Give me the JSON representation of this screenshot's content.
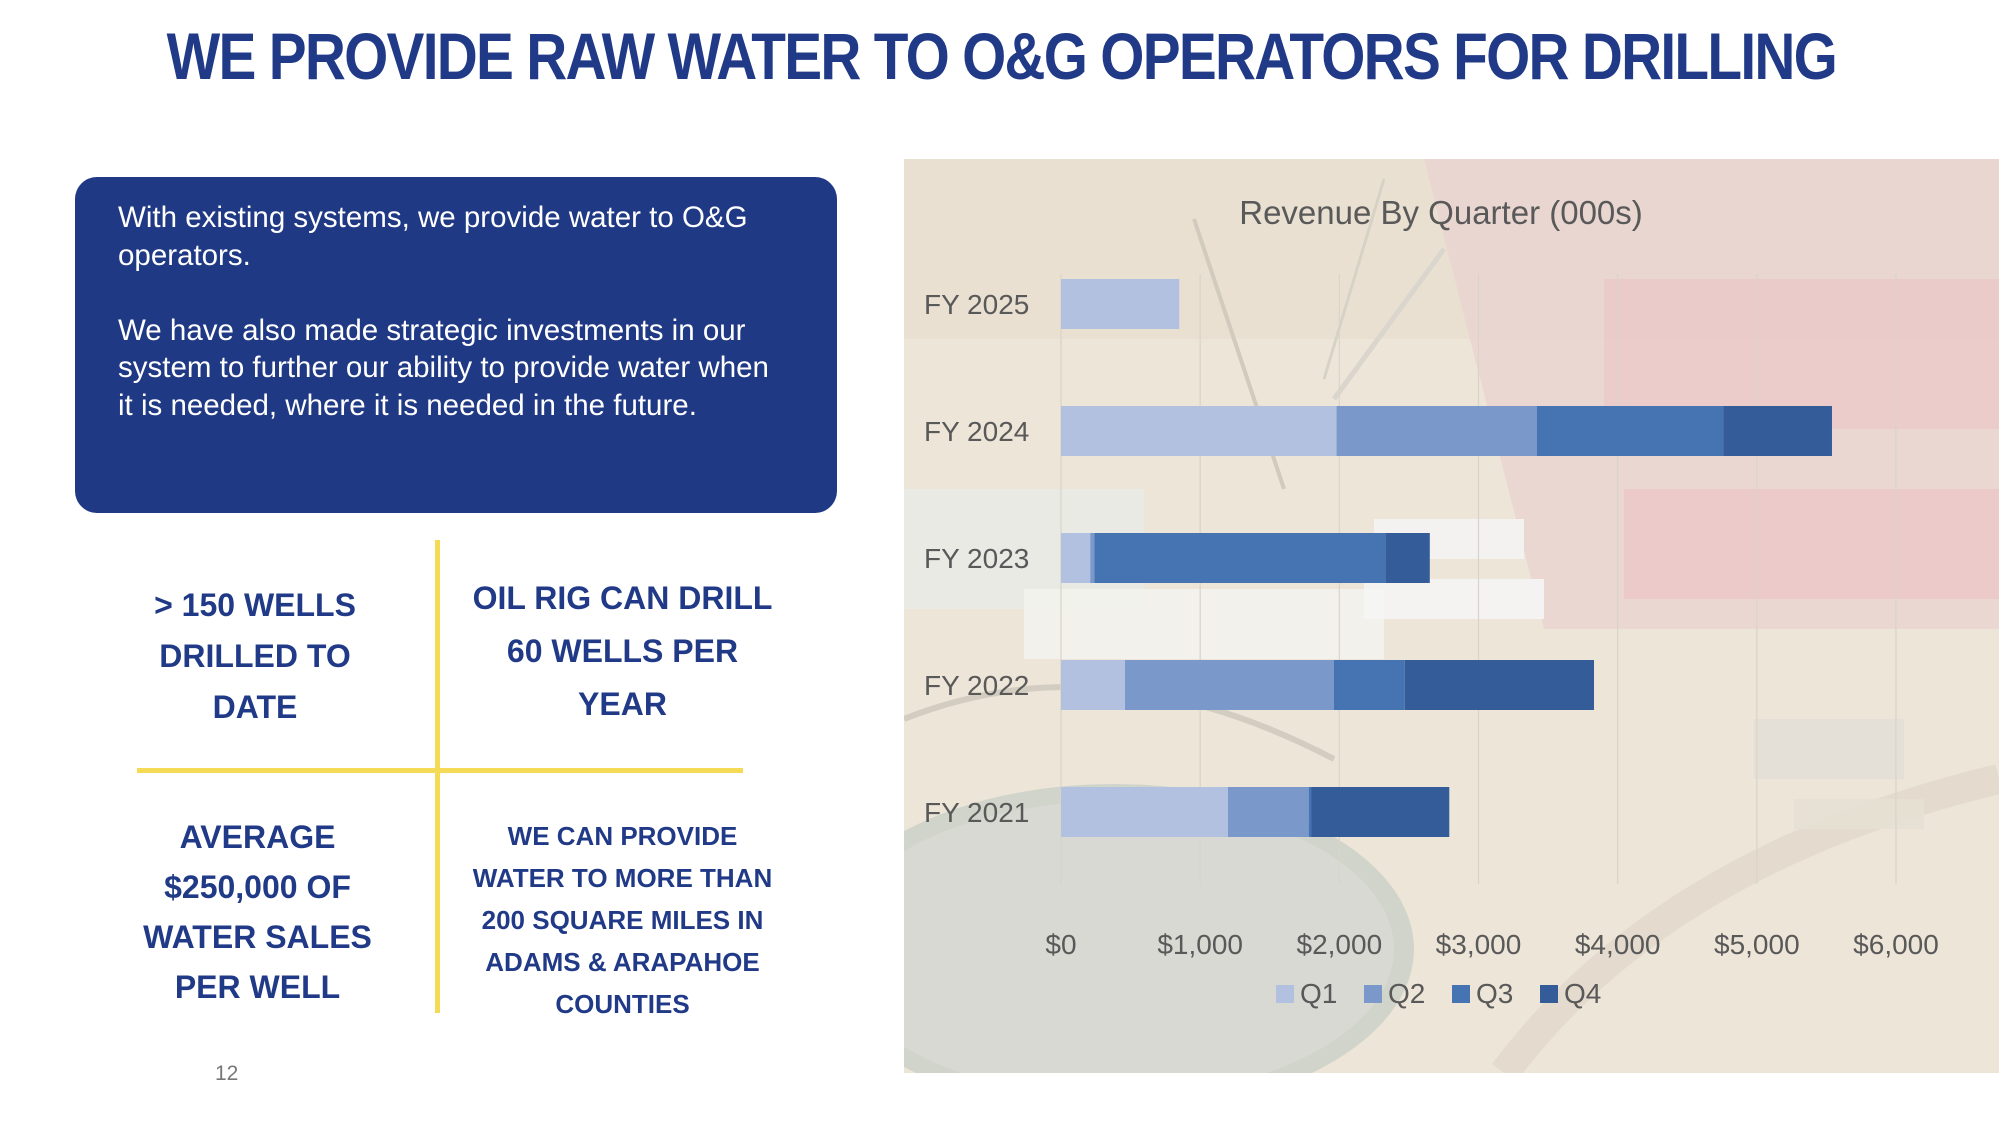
{
  "slide": {
    "title": "WE PROVIDE RAW WATER TO O&G OPERATORS FOR DRILLING",
    "page_number": "12"
  },
  "intro_box": {
    "paragraph1": "With existing systems, we provide water to O&G operators.",
    "paragraph2": "We have also made strategic investments in our system to further our ability to provide water when it is needed, where it is needed in the future."
  },
  "stats": {
    "wells_drilled": [
      "> 150 WELLS",
      "DRILLED TO",
      "DATE"
    ],
    "rig_capacity": [
      "OIL RIG CAN DRILL",
      "60 WELLS PER",
      "YEAR"
    ],
    "water_sales": [
      "AVERAGE",
      "$250,000 OF",
      "WATER SALES",
      "PER WELL"
    ],
    "coverage": [
      "WE CAN PROVIDE",
      "WATER TO MORE THAN",
      "200 SQUARE MILES IN",
      "ADAMS & ARAPAHOE",
      "COUNTIES"
    ]
  },
  "colors": {
    "title": "#213a87",
    "box": "#203984",
    "divider": "#f5da55",
    "q1": "#b2c1e0",
    "q2": "#7b98cb",
    "q3": "#4674b3",
    "q4": "#335c98"
  },
  "chart_data": {
    "type": "bar",
    "orientation": "horizontal",
    "stacked": true,
    "title": "Revenue By Quarter (000s)",
    "categories": [
      "FY 2025",
      "FY 2024",
      "FY 2023",
      "FY 2022",
      "FY 2021"
    ],
    "series": [
      {
        "name": "Q1",
        "values": [
          850,
          1980,
          210,
          460,
          1200
        ]
      },
      {
        "name": "Q2",
        "values": [
          0,
          1440,
          30,
          1500,
          580
        ]
      },
      {
        "name": "Q3",
        "values": [
          0,
          1340,
          2090,
          510,
          20
        ]
      },
      {
        "name": "Q4",
        "values": [
          0,
          780,
          320,
          1360,
          990
        ]
      }
    ],
    "x_ticks": [
      "$0",
      "$1,000",
      "$2,000",
      "$3,000",
      "$4,000",
      "$5,000",
      "$6,000"
    ],
    "xlim": [
      0,
      6000
    ],
    "legend_position": "bottom",
    "background": "aerial photo of drilling site"
  }
}
